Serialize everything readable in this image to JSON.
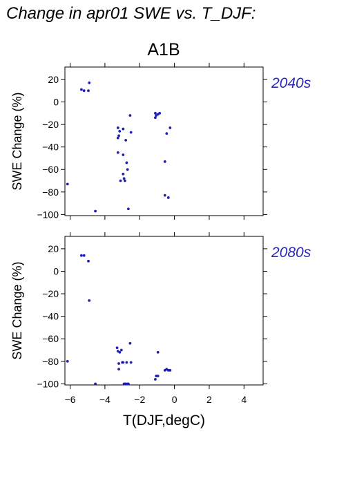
{
  "title": "Change in apr01 SWE vs. T_DJF:",
  "scenario": "A1B",
  "colors": {
    "points": "#2020b0",
    "period_label": "#2a2ab5"
  },
  "chart_data": [
    {
      "type": "scatter",
      "period": "2040s",
      "ylabel": "SWE Change (%)",
      "xlabel": "",
      "xlim": [
        -6.3,
        5.1
      ],
      "ylim": [
        -101,
        31
      ],
      "xticks": [
        -6,
        -4,
        -2,
        0,
        2,
        4
      ],
      "xtick_labels": [],
      "yticks": [
        20,
        0,
        -20,
        -40,
        -60,
        -80,
        -100
      ],
      "ytick_labels": [
        "20",
        "0",
        "−20",
        "−40",
        "−60",
        "−80",
        "−100"
      ],
      "points": [
        [
          -6.15,
          -73
        ],
        [
          -5.35,
          11
        ],
        [
          -5.2,
          10
        ],
        [
          -4.9,
          17
        ],
        [
          -4.95,
          10
        ],
        [
          -4.55,
          -97
        ],
        [
          -3.25,
          -23
        ],
        [
          -3.25,
          -45
        ],
        [
          -3.2,
          -30
        ],
        [
          -3.15,
          -26
        ],
        [
          -3.1,
          -70
        ],
        [
          -3.25,
          -32
        ],
        [
          -2.95,
          -24
        ],
        [
          -2.95,
          -47
        ],
        [
          -2.95,
          -64
        ],
        [
          -2.9,
          -68
        ],
        [
          -2.85,
          -70
        ],
        [
          -2.8,
          -34
        ],
        [
          -2.75,
          -54
        ],
        [
          -2.7,
          -60
        ],
        [
          -2.65,
          -95
        ],
        [
          -2.55,
          -12
        ],
        [
          -2.5,
          -27
        ],
        [
          -1.1,
          -10
        ],
        [
          -1.1,
          -14
        ],
        [
          -1.05,
          -12
        ],
        [
          -0.95,
          -11
        ],
        [
          -0.85,
          -10
        ],
        [
          -0.55,
          -53
        ],
        [
          -0.55,
          -83
        ],
        [
          -0.45,
          -28
        ],
        [
          -0.35,
          -85
        ],
        [
          -0.25,
          -23
        ]
      ]
    },
    {
      "type": "scatter",
      "period": "2080s",
      "ylabel": "SWE Change (%)",
      "xlabel": "T(DJF,degC)",
      "xlim": [
        -6.3,
        5.1
      ],
      "ylim": [
        -101,
        31
      ],
      "xticks": [
        -6,
        -4,
        -2,
        0,
        2,
        4
      ],
      "xtick_labels": [
        "−6",
        "−4",
        "−2",
        "0",
        "2",
        "4"
      ],
      "yticks": [
        20,
        0,
        -20,
        -40,
        -60,
        -80,
        -100
      ],
      "ytick_labels": [
        "20",
        "0",
        "−20",
        "−40",
        "−60",
        "−80",
        "−100"
      ],
      "points": [
        [
          -6.15,
          -80
        ],
        [
          -5.35,
          14
        ],
        [
          -5.2,
          14
        ],
        [
          -4.95,
          9
        ],
        [
          -4.9,
          -26
        ],
        [
          -4.55,
          -100
        ],
        [
          -3.3,
          -68
        ],
        [
          -3.25,
          -71
        ],
        [
          -3.2,
          -82
        ],
        [
          -3.2,
          -87
        ],
        [
          -3.15,
          -72
        ],
        [
          -3.05,
          -70
        ],
        [
          -3.0,
          -81
        ],
        [
          -2.95,
          -81
        ],
        [
          -2.9,
          -100
        ],
        [
          -2.85,
          -100
        ],
        [
          -2.8,
          -100
        ],
        [
          -2.75,
          -81
        ],
        [
          -2.7,
          -100
        ],
        [
          -2.65,
          -100
        ],
        [
          -2.55,
          -64
        ],
        [
          -2.5,
          -81
        ],
        [
          -1.1,
          -96
        ],
        [
          -1.05,
          -93
        ],
        [
          -0.95,
          -72
        ],
        [
          -0.95,
          -93
        ],
        [
          -0.55,
          -88
        ],
        [
          -0.45,
          -87
        ],
        [
          -0.35,
          -88
        ],
        [
          -0.25,
          -88
        ]
      ]
    }
  ]
}
